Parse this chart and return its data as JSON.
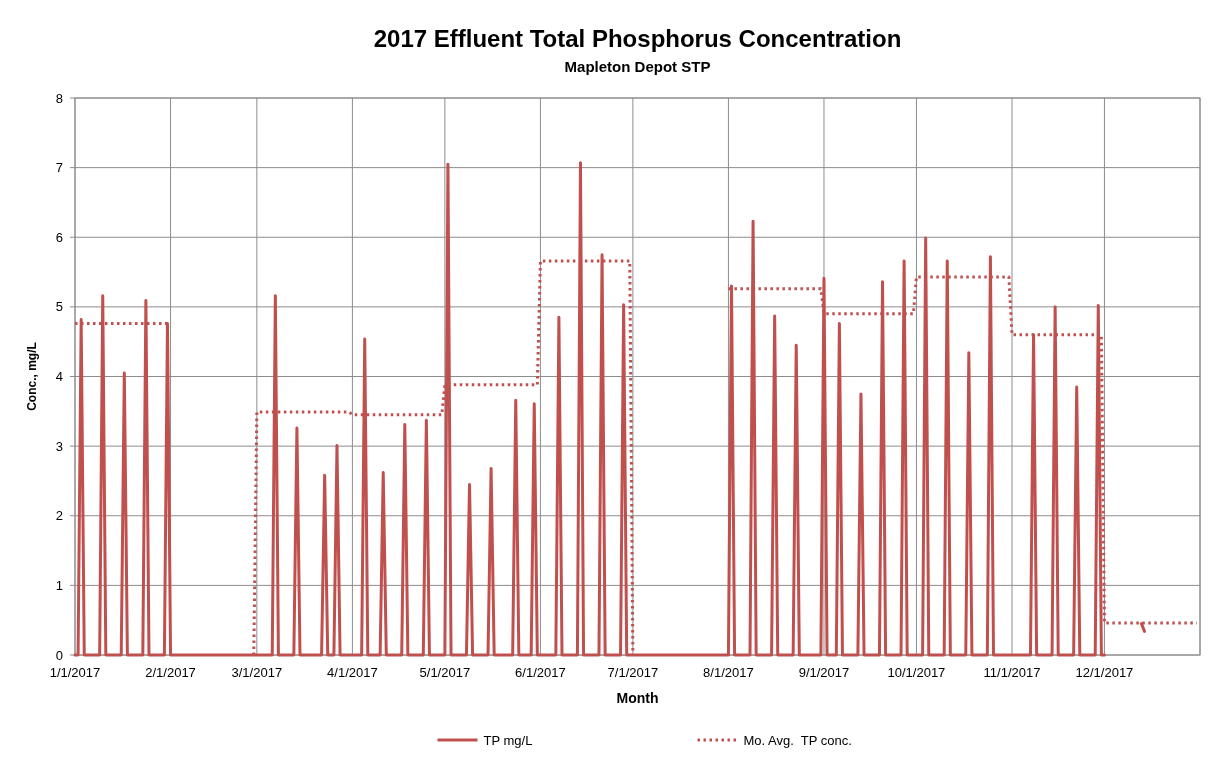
{
  "chart_data": {
    "type": "line",
    "title": "2017 Effluent Total Phosphorus Concentration",
    "subtitle": "Mapleton Depot STP",
    "xlabel": "Month",
    "ylabel": "Conc., mg/L",
    "xlim": [
      "2017-01-01",
      "2018-01-01"
    ],
    "xticks": [
      {
        "value": "2017-01-01",
        "label": "1/1/2017"
      },
      {
        "value": "2017-02-01",
        "label": "2/1/2017"
      },
      {
        "value": "2017-03-01",
        "label": "3/1/2017"
      },
      {
        "value": "2017-04-01",
        "label": "4/1/2017"
      },
      {
        "value": "2017-05-01",
        "label": "5/1/2017"
      },
      {
        "value": "2017-06-01",
        "label": "6/1/2017"
      },
      {
        "value": "2017-07-01",
        "label": "7/1/2017"
      },
      {
        "value": "2017-08-01",
        "label": "8/1/2017"
      },
      {
        "value": "2017-09-01",
        "label": "9/1/2017"
      },
      {
        "value": "2017-10-01",
        "label": "10/1/2017"
      },
      {
        "value": "2017-11-01",
        "label": "11/1/2017"
      },
      {
        "value": "2017-12-01",
        "label": "12/1/2017"
      },
      {
        "value": "2018-01-01",
        "label": null
      }
    ],
    "ylim": [
      0,
      8
    ],
    "yticks": [
      0,
      1,
      2,
      3,
      4,
      5,
      6,
      7,
      8
    ],
    "grid": true,
    "legend": "bottom",
    "series": [
      {
        "name": "TP mg/L",
        "color": "#c0504d",
        "line_style": "solid",
        "x": [
          "2017-01-01",
          "2017-01-02",
          "2017-01-03",
          "2017-01-04",
          "2017-01-09",
          "2017-01-10",
          "2017-01-11",
          "2017-01-16",
          "2017-01-17",
          "2017-01-18",
          "2017-01-23",
          "2017-01-24",
          "2017-01-25",
          "2017-01-30",
          "2017-01-31",
          "2017-02-01",
          "2017-03-06",
          "2017-03-07",
          "2017-03-08",
          "2017-03-13",
          "2017-03-14",
          "2017-03-15",
          "2017-03-22",
          "2017-03-23",
          "2017-03-24",
          "2017-03-26",
          "2017-03-27",
          "2017-03-28",
          "2017-04-04",
          "2017-04-05",
          "2017-04-06",
          "2017-04-10",
          "2017-04-11",
          "2017-04-12",
          "2017-04-17",
          "2017-04-18",
          "2017-04-19",
          "2017-04-24",
          "2017-04-25",
          "2017-04-26",
          "2017-05-01",
          "2017-05-02",
          "2017-05-03",
          "2017-05-08",
          "2017-05-09",
          "2017-05-10",
          "2017-05-15",
          "2017-05-16",
          "2017-05-17",
          "2017-05-23",
          "2017-05-24",
          "2017-05-25",
          "2017-05-29",
          "2017-05-30",
          "2017-05-31",
          "2017-06-06",
          "2017-06-07",
          "2017-06-08",
          "2017-06-13",
          "2017-06-14",
          "2017-06-15",
          "2017-06-20",
          "2017-06-21",
          "2017-06-22",
          "2017-06-27",
          "2017-06-28",
          "2017-06-29",
          "2017-08-01",
          "2017-08-02",
          "2017-08-03",
          "2017-08-08",
          "2017-08-09",
          "2017-08-10",
          "2017-08-15",
          "2017-08-16",
          "2017-08-17",
          "2017-08-22",
          "2017-08-23",
          "2017-08-24",
          "2017-08-31",
          "2017-09-01",
          "2017-09-02",
          "2017-09-05",
          "2017-09-06",
          "2017-09-07",
          "2017-09-12",
          "2017-09-13",
          "2017-09-14",
          "2017-09-19",
          "2017-09-20",
          "2017-09-21",
          "2017-09-26",
          "2017-09-27",
          "2017-09-28",
          "2017-10-03",
          "2017-10-04",
          "2017-10-05",
          "2017-10-10",
          "2017-10-11",
          "2017-10-12",
          "2017-10-17",
          "2017-10-18",
          "2017-10-19",
          "2017-10-24",
          "2017-10-25",
          "2017-10-26",
          "2017-11-07",
          "2017-11-08",
          "2017-11-09",
          "2017-11-14",
          "2017-11-15",
          "2017-11-16",
          "2017-11-21",
          "2017-11-22",
          "2017-11-23",
          "2017-11-28",
          "2017-11-29",
          "2017-11-30",
          "2017-12-01",
          "2017-12-02",
          "2017-12-13",
          "2017-12-14"
        ],
        "values": [
          0,
          0,
          4.82,
          0,
          0,
          5.16,
          0,
          0,
          4.05,
          0,
          0,
          5.09,
          0,
          0,
          4.76,
          0,
          0,
          5.16,
          0,
          0,
          3.26,
          0,
          0,
          2.58,
          0,
          0,
          3.01,
          0,
          0,
          4.54,
          0,
          0,
          2.62,
          0,
          0,
          3.31,
          0,
          0,
          3.37,
          0,
          0,
          7.05,
          0,
          0,
          2.45,
          0,
          0,
          2.68,
          0,
          0,
          3.66,
          0,
          0,
          3.61,
          0,
          0,
          4.85,
          0,
          0,
          7.07,
          0,
          0,
          5.75,
          0,
          0,
          5.03,
          0,
          0,
          5.3,
          0,
          0,
          6.23,
          0,
          0,
          4.87,
          0,
          0,
          4.45,
          0,
          0,
          5.41,
          0,
          0,
          4.76,
          0,
          0,
          3.75,
          0,
          0,
          5.36,
          0,
          0,
          5.66,
          0,
          0,
          5.99,
          0,
          0,
          5.66,
          0,
          0,
          4.34,
          0,
          0,
          5.72,
          0,
          0,
          4.6,
          0,
          0,
          5.0,
          0,
          0,
          3.85,
          0,
          0,
          5.02,
          0,
          0,
          null,
          0.45,
          0.34
        ]
      },
      {
        "name": "Mo. Avg.  TP conc.",
        "color": "#c0504d",
        "line_style": "dotted",
        "x": [
          "2017-01-01",
          "2017-01-31",
          "2017-02-01",
          "2017-02-28",
          "2017-03-01",
          "2017-03-31",
          "2017-04-01",
          "2017-04-30",
          "2017-05-01",
          "2017-05-31",
          "2017-06-01",
          "2017-06-30",
          "2017-07-01",
          "2017-07-02",
          "2017-08-01",
          "2017-08-31",
          "2017-09-01",
          "2017-09-30",
          "2017-10-01",
          "2017-10-31",
          "2017-11-01",
          "2017-11-30",
          "2017-12-01",
          "2017-12-31"
        ],
        "values": [
          4.76,
          4.76,
          null,
          0,
          3.49,
          3.49,
          3.45,
          3.45,
          3.88,
          3.88,
          5.66,
          5.66,
          0,
          null,
          5.26,
          5.26,
          4.9,
          4.9,
          5.43,
          5.43,
          4.6,
          4.6,
          0.46,
          0.46
        ]
      }
    ]
  }
}
